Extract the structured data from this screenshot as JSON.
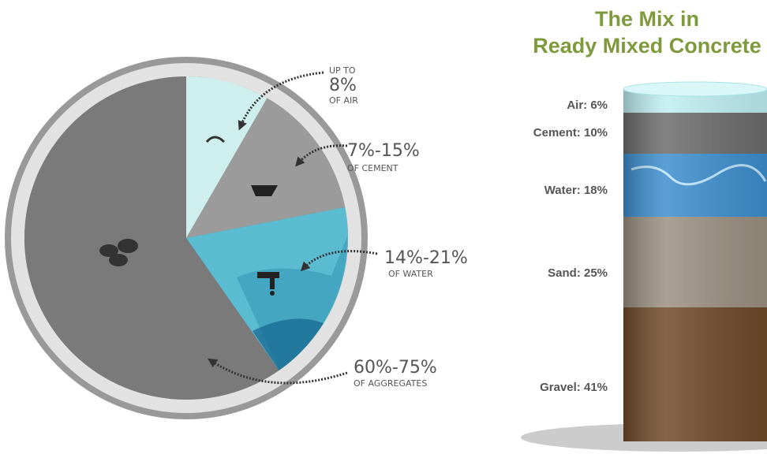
{
  "infographic": {
    "left": {
      "annotations": [
        {
          "prefix": "UP TO",
          "amount": "8%",
          "suffix": "OF AIR"
        },
        {
          "amount": "7%-15%",
          "suffix": "OF CEMENT"
        },
        {
          "amount": "14%-21%",
          "suffix": "OF WATER"
        },
        {
          "amount": "60%-75%",
          "suffix": "OF AGGREGATES"
        }
      ]
    },
    "right": {
      "title": [
        "The Mix in",
        "Ready Mixed Concrete"
      ],
      "layers": [
        "Air: 6%",
        "Cement: 10%",
        "Water: 18%",
        "Sand: 25%",
        "Gravel: 41%"
      ]
    }
  }
}
